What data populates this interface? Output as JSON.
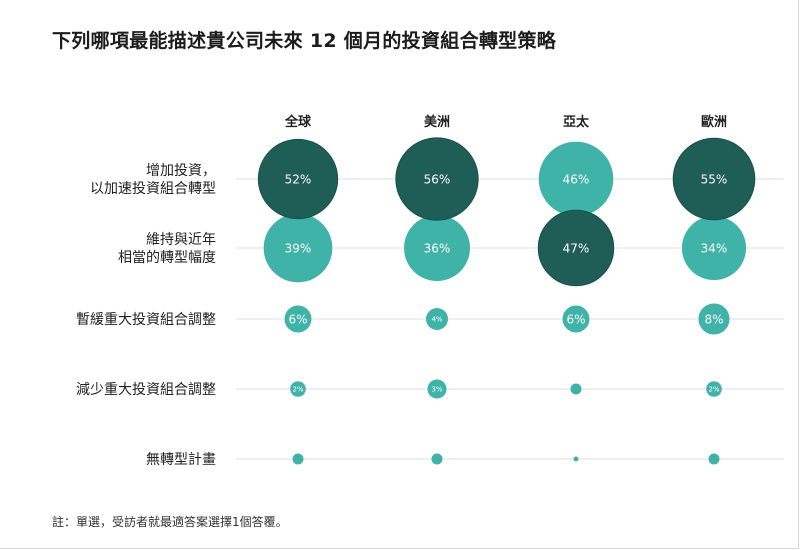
{
  "title": "下列哪項最能描述貴公司未來 12 個月的投資組合轉型策略",
  "footnote": "註：單選，受訪者就最適答案選擇1個答覆。",
  "colors": {
    "dark": "#1f5e57",
    "light": "#3fb3a8",
    "gridline": "#e9ecec"
  },
  "chart_data": {
    "type": "bubble-matrix",
    "columns": [
      "全球",
      "美洲",
      "亞太",
      "歐洲"
    ],
    "rows": [
      {
        "label_lines": [
          "增加投資，",
          "以加速投資組合轉型"
        ],
        "values": [
          52,
          56,
          46,
          55
        ],
        "highlight": [
          true,
          true,
          false,
          true
        ]
      },
      {
        "label_lines": [
          "維持與近年",
          "相當的轉型幅度"
        ],
        "values": [
          39,
          36,
          47,
          34
        ],
        "highlight": [
          false,
          false,
          true,
          false
        ]
      },
      {
        "label_lines": [
          "暫緩重大投資組合調整"
        ],
        "values": [
          6,
          4,
          6,
          8
        ],
        "highlight": [
          false,
          false,
          false,
          false
        ]
      },
      {
        "label_lines": [
          "減少重大投資組合調整"
        ],
        "values": [
          2,
          3,
          1,
          2
        ],
        "highlight": [
          false,
          false,
          false,
          false
        ],
        "shown_labels": [
          "2%",
          "3%",
          "",
          "2%"
        ]
      },
      {
        "label_lines": [
          "無轉型計畫"
        ],
        "values": [
          1,
          1,
          0.2,
          1
        ],
        "highlight": [
          false,
          false,
          false,
          false
        ],
        "shown_labels": [
          "",
          "",
          "",
          ""
        ]
      }
    ],
    "unit": "%"
  }
}
